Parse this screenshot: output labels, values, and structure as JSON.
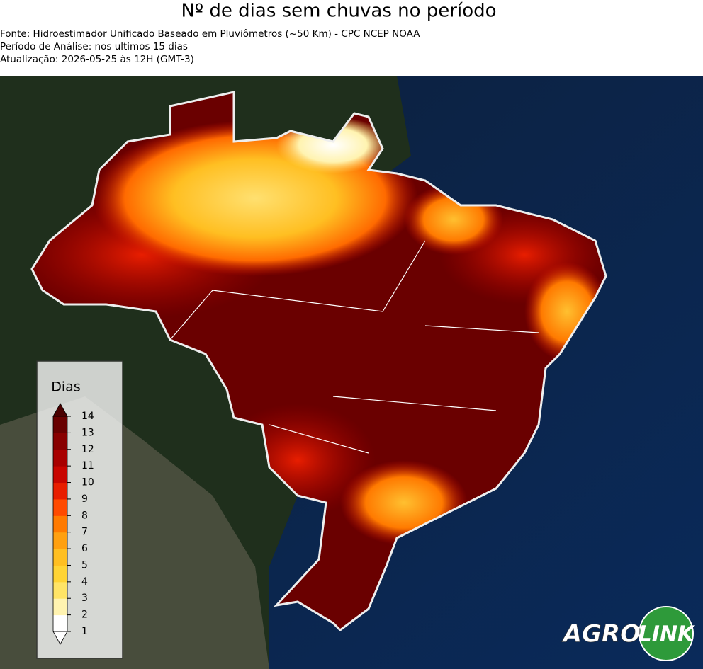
{
  "header": {
    "title": "Nº de dias sem chuvas no período",
    "lines": [
      "Fonte: Hidroestimador Unificado Baseado em Pluviômetros (~50 Km) - CPC NCEP NOAA",
      "Período de Análise: nos ultimos 15 dias",
      "Atualização: 2026-05-25 às 12H (GMT-3)"
    ]
  },
  "legend": {
    "title": "Dias",
    "ticks": [
      1,
      2,
      3,
      4,
      5,
      6,
      7,
      8,
      9,
      10,
      11,
      12,
      13,
      14
    ],
    "colors": [
      "#ffffff",
      "#fff3b0",
      "#ffe466",
      "#ffd435",
      "#ffbf22",
      "#ffa010",
      "#ff7a00",
      "#ff4a00",
      "#e81e00",
      "#c80500",
      "#a80000",
      "#880000",
      "#680000"
    ],
    "over_color": "#4a0000",
    "under_color": "#ffffff"
  },
  "logo": {
    "left": "AGRO",
    "right": "LINK"
  }
}
